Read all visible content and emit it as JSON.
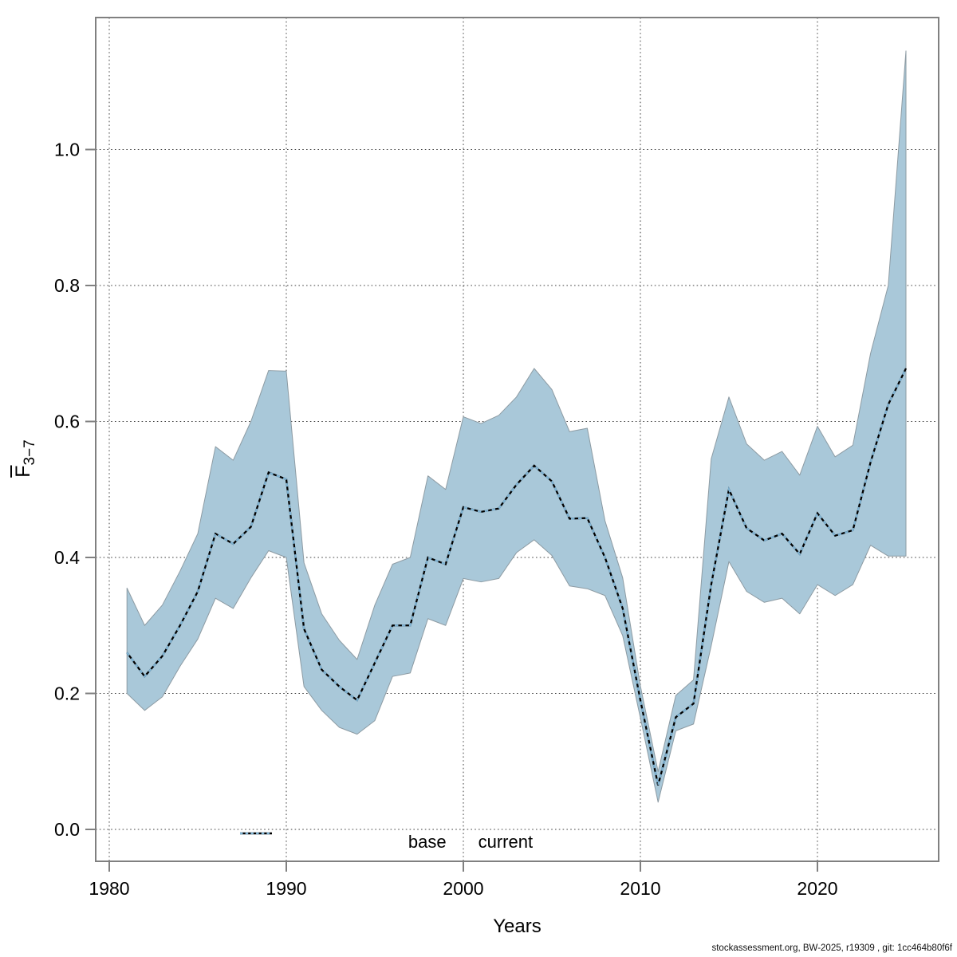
{
  "page": {
    "background": "#ffffff"
  },
  "labels": {
    "x_axis": "Years",
    "y_axis_letter": "F",
    "y_axis_subscript": "3−7"
  },
  "legend": {
    "items": [
      {
        "label": "base",
        "line_style": "solid",
        "line_color": "#000000"
      },
      {
        "label": "current",
        "line_style": "dashed",
        "line_color": "#7fb3d3"
      }
    ]
  },
  "footer": {
    "text": "stockassessment.org, BW-2025, r19309 , git: 1cc464b80f6f"
  },
  "colors": {
    "band_fill": "#a9c8d9",
    "band_edge": "#8d9ba3",
    "base_line": "#000000",
    "current_line": "#7fb3d3",
    "grid": "#404040",
    "frame": "#808080",
    "tick_text": "#000000"
  },
  "chart_data": {
    "type": "line",
    "title": "",
    "xlabel": "Years",
    "ylabel": "F̄3−7 (mean F, ages 3–7)",
    "grid": true,
    "legend_position": "bottom-center",
    "xlim": [
      1979.2,
      2026.9
    ],
    "ylim": [
      0.0,
      1.19
    ],
    "x_tick_values": [
      1980,
      1990,
      2000,
      2010,
      2020
    ],
    "x_tick_labels": [
      "1980",
      "1990",
      "2000",
      "2010",
      "2020"
    ],
    "y_tick_values": [
      0.0,
      0.2,
      0.4,
      0.6,
      0.8,
      1.0
    ],
    "y_tick_labels": [
      "0.0",
      "0.2",
      "0.4",
      "0.6",
      "0.8",
      "1.0"
    ],
    "x": [
      1981,
      1982,
      1983,
      1984,
      1985,
      1986,
      1987,
      1988,
      1989,
      1990,
      1991,
      1992,
      1993,
      1994,
      1995,
      1996,
      1997,
      1998,
      1999,
      2000,
      2001,
      2002,
      2003,
      2004,
      2005,
      2006,
      2007,
      2008,
      2009,
      2010,
      2011,
      2012,
      2013,
      2014,
      2015,
      2016,
      2017,
      2018,
      2019,
      2020,
      2021,
      2022,
      2023,
      2024,
      2025
    ],
    "series": [
      {
        "name": "base",
        "style": "solid-black",
        "values": [
          0.26,
          0.225,
          0.255,
          0.3,
          0.35,
          0.435,
          0.42,
          0.445,
          0.525,
          0.515,
          0.295,
          0.235,
          0.21,
          0.19,
          0.245,
          0.3,
          0.3,
          0.4,
          0.39,
          0.474,
          0.467,
          0.472,
          0.507,
          0.535,
          0.512,
          0.457,
          0.458,
          0.4,
          0.325,
          0.19,
          0.065,
          0.165,
          0.185,
          0.36,
          0.5,
          0.443,
          0.425,
          0.435,
          0.405,
          0.465,
          0.432,
          0.44,
          0.54,
          0.625,
          0.678
        ]
      },
      {
        "name": "current",
        "style": "dashed-lightblue",
        "values": [
          0.26,
          0.225,
          0.255,
          0.3,
          0.35,
          0.435,
          0.42,
          0.445,
          0.525,
          0.515,
          0.295,
          0.235,
          0.21,
          0.19,
          0.245,
          0.3,
          0.3,
          0.4,
          0.39,
          0.474,
          0.467,
          0.472,
          0.507,
          0.535,
          0.512,
          0.457,
          0.458,
          0.4,
          0.325,
          0.19,
          0.065,
          0.165,
          0.185,
          0.36,
          0.5,
          0.443,
          0.425,
          0.435,
          0.405,
          0.465,
          0.432,
          0.44,
          0.54,
          0.625,
          0.678
        ]
      }
    ],
    "band": {
      "name": "current-confidence-interval",
      "lower": [
        0.2,
        0.175,
        0.195,
        0.24,
        0.28,
        0.34,
        0.325,
        0.37,
        0.41,
        0.4,
        0.21,
        0.175,
        0.15,
        0.14,
        0.16,
        0.225,
        0.23,
        0.31,
        0.3,
        0.369,
        0.364,
        0.369,
        0.407,
        0.426,
        0.403,
        0.358,
        0.354,
        0.344,
        0.285,
        0.164,
        0.04,
        0.145,
        0.155,
        0.27,
        0.394,
        0.35,
        0.334,
        0.34,
        0.317,
        0.36,
        0.344,
        0.36,
        0.418,
        0.402,
        0.402
      ],
      "upper": [
        0.355,
        0.3,
        0.33,
        0.38,
        0.435,
        0.563,
        0.543,
        0.6,
        0.675,
        0.674,
        0.392,
        0.317,
        0.278,
        0.25,
        0.33,
        0.39,
        0.4,
        0.52,
        0.5,
        0.607,
        0.597,
        0.609,
        0.636,
        0.678,
        0.647,
        0.585,
        0.59,
        0.454,
        0.37,
        0.211,
        0.085,
        0.197,
        0.22,
        0.545,
        0.636,
        0.567,
        0.543,
        0.556,
        0.521,
        0.593,
        0.548,
        0.565,
        0.7,
        0.8,
        1.145
      ]
    }
  }
}
